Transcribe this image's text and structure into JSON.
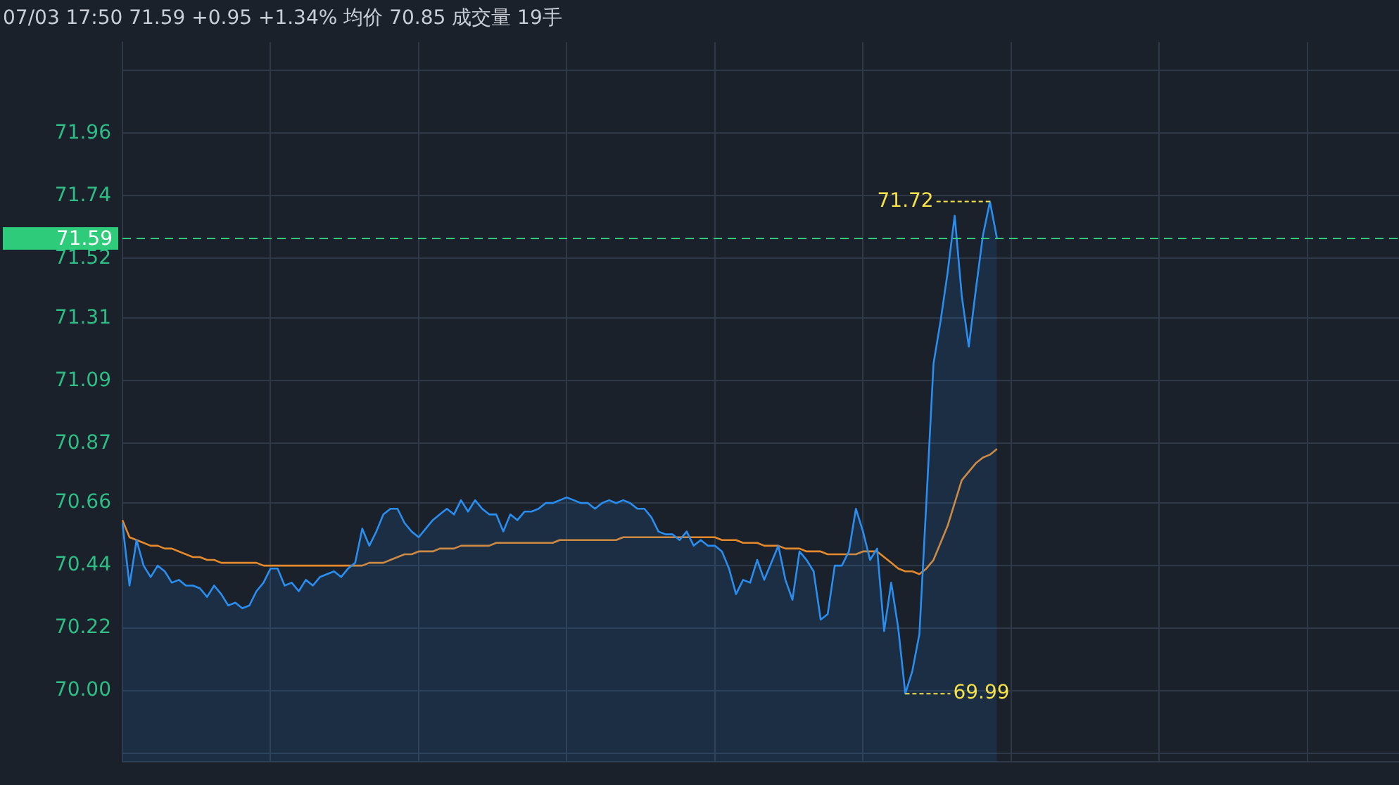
{
  "chart_data": {
    "type": "line",
    "title": "07/03 17:50 71.59 +0.95 +1.34% 均价 70.85 成交量 19手",
    "categories": [
      null,
      null,
      null,
      null,
      null,
      null,
      null,
      null,
      null,
      null,
      null,
      null,
      null,
      null,
      null,
      null,
      null,
      null,
      null,
      null,
      null,
      null,
      null,
      null,
      null,
      null,
      null,
      null,
      null,
      null,
      null,
      null,
      null,
      null,
      null,
      null,
      null,
      null,
      null,
      null,
      null,
      null,
      null,
      null,
      null,
      null,
      null,
      null,
      null,
      null,
      null,
      null,
      null,
      null,
      null,
      null,
      null,
      null,
      null,
      null,
      null,
      null,
      null,
      null,
      null,
      null,
      null,
      null,
      null,
      null,
      null,
      null,
      null,
      null,
      null,
      null,
      null,
      null,
      null,
      null,
      null,
      null,
      null,
      null,
      null,
      null,
      null,
      null,
      null,
      null,
      null,
      null,
      null,
      null,
      null,
      null,
      null,
      null,
      null,
      null,
      null,
      null,
      null,
      null,
      null,
      null,
      null,
      null,
      null,
      null,
      null,
      null,
      null,
      null,
      null,
      null,
      null,
      null,
      null,
      null,
      null,
      null,
      null,
      null,
      null,
      null,
      null,
      null,
      null,
      null,
      null,
      null,
      null,
      null,
      null,
      null,
      null,
      null,
      null,
      null,
      null,
      null,
      null,
      null,
      null,
      null,
      null,
      null,
      null,
      null,
      null,
      null,
      null,
      null,
      null,
      null,
      null,
      null,
      null,
      null,
      null,
      null,
      null,
      null,
      null,
      null,
      null,
      null,
      null,
      null,
      null,
      null,
      null,
      null,
      null,
      null,
      null,
      null,
      null,
      null,
      null,
      null
    ],
    "ylim": [
      69.75,
      72.28
    ],
    "yticks": [
      {
        "value": 69.78,
        "label": null
      },
      {
        "value": 70,
        "label": "70.00"
      },
      70.22,
      70.44,
      70.66,
      70.87,
      71.09,
      71.31,
      71.52,
      71.74,
      71.96,
      {
        "value": 72.18,
        "label": null
      }
    ],
    "grid": true,
    "tick_labels": "y",
    "marker": "none",
    "line_style": "solid",
    "series": [
      {
        "type": "area",
        "color": "#2a8ef0",
        "value_labels": [
          null,
          null,
          null,
          null,
          null,
          null,
          null,
          null,
          null,
          null,
          null,
          null,
          null,
          null,
          null,
          null,
          null,
          null,
          null,
          null,
          null,
          null,
          null,
          null,
          null,
          null,
          null,
          null,
          null,
          null,
          null,
          null,
          null,
          null,
          null,
          null,
          null,
          null,
          null,
          null,
          null,
          null,
          null,
          null,
          null,
          null,
          null,
          null,
          null,
          null,
          null,
          null,
          null,
          null,
          null,
          null,
          null,
          null,
          null,
          null,
          null,
          null,
          null,
          null,
          null,
          null,
          null,
          null,
          null,
          null,
          null,
          null,
          null,
          null,
          null,
          null,
          null,
          null,
          null,
          null,
          null,
          null,
          null,
          null,
          null,
          null,
          null,
          null,
          null,
          null,
          null,
          null,
          null,
          null,
          null,
          null,
          null,
          null,
          null,
          null,
          null,
          null,
          null,
          null,
          null,
          null,
          null,
          null,
          null,
          null,
          null,
          "69.99",
          null,
          null,
          null,
          null,
          null,
          null,
          null,
          null,
          null,
          null,
          null,
          "71.72",
          null,
          null,
          null,
          null,
          null,
          null,
          null,
          null,
          null,
          null,
          null,
          null,
          null,
          null,
          null,
          null,
          null,
          null,
          null,
          null,
          null,
          null,
          null,
          null,
          null,
          null,
          null,
          null,
          null,
          null,
          null,
          null,
          null,
          null,
          null,
          null,
          null,
          null,
          null,
          null,
          null,
          null,
          null,
          null,
          null,
          null,
          null,
          null,
          null,
          null,
          null,
          null,
          null,
          null,
          null,
          null,
          null,
          null
        ],
        "values": [
          70.59,
          70.37,
          70.53,
          70.44,
          70.4,
          70.44,
          70.42,
          70.38,
          70.39,
          70.37,
          70.37,
          70.36,
          70.33,
          70.37,
          70.34,
          70.3,
          70.31,
          70.29,
          70.3,
          70.35,
          70.38,
          70.43,
          70.43,
          70.37,
          70.38,
          70.35,
          70.39,
          70.37,
          70.4,
          70.41,
          70.42,
          70.4,
          70.43,
          70.45,
          70.57,
          70.51,
          70.56,
          70.62,
          70.64,
          70.64,
          70.59,
          70.56,
          70.54,
          70.57,
          70.6,
          70.62,
          70.64,
          70.62,
          70.67,
          70.63,
          70.67,
          70.64,
          70.62,
          70.62,
          70.56,
          70.62,
          70.6,
          70.63,
          70.63,
          70.64,
          70.66,
          70.66,
          70.67,
          70.68,
          70.67,
          70.66,
          70.66,
          70.64,
          70.66,
          70.67,
          70.66,
          70.67,
          70.66,
          70.64,
          70.64,
          70.61,
          70.56,
          70.55,
          70.55,
          70.53,
          70.56,
          70.51,
          70.53,
          70.51,
          70.51,
          70.49,
          70.43,
          70.34,
          70.39,
          70.38,
          70.46,
          70.39,
          70.45,
          70.51,
          70.39,
          70.32,
          70.49,
          70.46,
          70.42,
          70.25,
          70.27,
          70.44,
          70.44,
          70.49,
          70.64,
          70.56,
          70.46,
          70.5,
          70.21,
          70.38,
          70.22,
          69.99,
          70.07,
          70.2,
          70.67,
          71.15,
          71.3,
          71.47,
          71.67,
          71.39,
          71.21,
          71.41,
          71.6,
          71.72,
          71.59,
          null,
          null,
          null,
          null,
          null,
          null,
          null,
          null,
          null,
          null,
          null,
          null,
          null,
          null,
          null,
          null,
          null,
          null,
          null,
          null,
          null,
          null,
          null,
          null,
          null,
          null,
          null,
          null,
          null,
          null,
          null,
          null,
          null,
          null,
          null,
          null,
          null,
          null,
          null,
          null,
          null,
          null,
          null,
          null,
          null,
          null,
          null,
          null,
          null,
          null,
          null,
          null,
          null,
          null,
          null,
          null,
          null
        ]
      },
      {
        "type": "line",
        "color": "#e58a2c",
        "values": [
          70.6,
          70.54,
          70.53,
          70.52,
          70.51,
          70.51,
          70.5,
          70.5,
          70.49,
          70.48,
          70.47,
          70.47,
          70.46,
          70.46,
          70.45,
          70.45,
          70.45,
          70.45,
          70.45,
          70.45,
          70.44,
          70.44,
          70.44,
          70.44,
          70.44,
          70.44,
          70.44,
          70.44,
          70.44,
          70.44,
          70.44,
          70.44,
          70.44,
          70.44,
          70.44,
          70.45,
          70.45,
          70.45,
          70.46,
          70.47,
          70.48,
          70.48,
          70.49,
          70.49,
          70.49,
          70.5,
          70.5,
          70.5,
          70.51,
          70.51,
          70.51,
          70.51,
          70.51,
          70.52,
          70.52,
          70.52,
          70.52,
          70.52,
          70.52,
          70.52,
          70.52,
          70.52,
          70.53,
          70.53,
          70.53,
          70.53,
          70.53,
          70.53,
          70.53,
          70.53,
          70.53,
          70.54,
          70.54,
          70.54,
          70.54,
          70.54,
          70.54,
          70.54,
          70.54,
          70.54,
          70.54,
          70.54,
          70.54,
          70.54,
          70.54,
          70.53,
          70.53,
          70.53,
          70.52,
          70.52,
          70.52,
          70.51,
          70.51,
          70.51,
          70.5,
          70.5,
          70.5,
          70.49,
          70.49,
          70.49,
          70.48,
          70.48,
          70.48,
          70.48,
          70.48,
          70.49,
          70.49,
          70.49,
          70.47,
          70.45,
          70.43,
          70.42,
          70.42,
          70.41,
          70.43,
          70.46,
          70.52,
          70.58,
          70.66,
          70.74,
          70.77,
          70.8,
          70.82,
          70.83,
          70.85,
          null,
          null,
          null,
          null,
          null,
          null,
          null,
          null,
          null,
          null,
          null,
          null,
          null,
          null,
          null,
          null,
          null,
          null,
          null,
          null,
          null,
          null,
          null,
          null,
          null,
          null,
          null,
          null,
          null,
          null,
          null,
          null,
          null,
          null,
          null,
          null,
          null,
          null,
          null,
          null,
          null,
          null,
          null,
          null,
          null,
          null,
          null,
          null,
          null,
          null,
          null,
          null,
          null,
          null,
          null,
          null,
          null
        ]
      }
    ],
    "ref_lines": [
      {
        "axis": "y",
        "value": 71.59,
        "label": "71.59",
        "color": "#2ecc7a",
        "line_style": "dashed"
      }
    ]
  }
}
